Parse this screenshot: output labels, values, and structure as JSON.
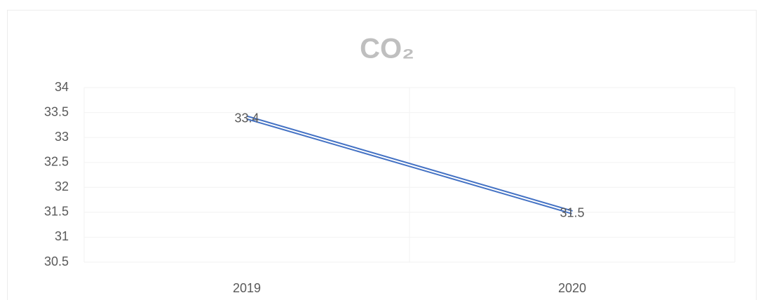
{
  "chart_data": {
    "type": "line",
    "title": "CO₂",
    "categories": [
      "2019",
      "2020"
    ],
    "series": [
      {
        "name": "CO₂",
        "color": "#4472c4",
        "values": [
          33.4,
          31.5
        ]
      }
    ],
    "ylim": [
      30.5,
      34
    ],
    "yticks": [
      30.5,
      31,
      31.5,
      32,
      32.5,
      33,
      33.5,
      34
    ],
    "grid": true
  }
}
